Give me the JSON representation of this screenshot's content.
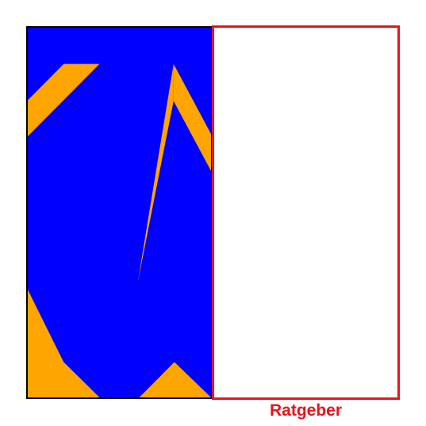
{
  "panels": {
    "left": {
      "background_color": "#0000ff",
      "shape_color": "#ffa500",
      "border_color": "#000000"
    },
    "right": {
      "border_color": "#e8141c",
      "background_color": "#ffffff",
      "caption": "Ratgeber",
      "caption_color": "#e8141c"
    }
  }
}
